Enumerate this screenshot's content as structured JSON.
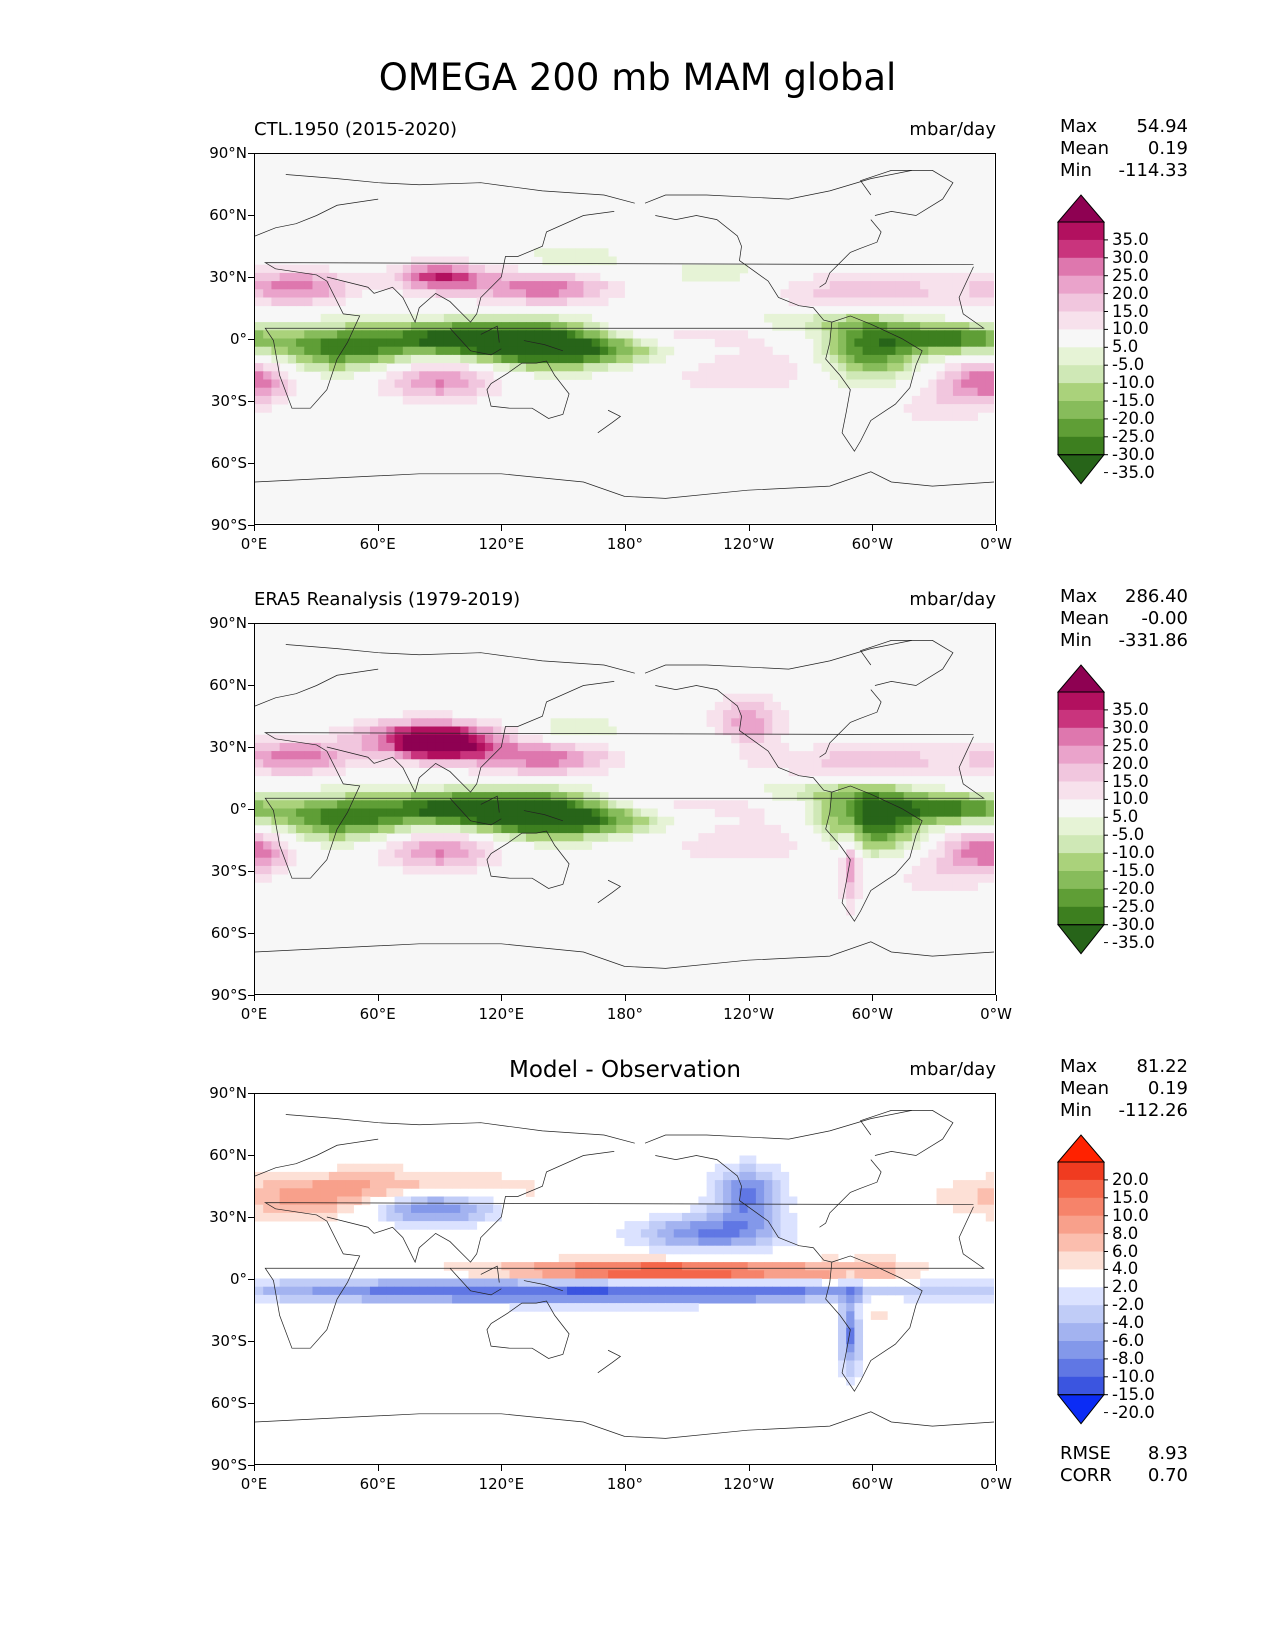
{
  "figure": {
    "title": "OMEGA 200 mb MAM global"
  },
  "axes": {
    "lat_labels": [
      "90°N",
      "60°N",
      "30°N",
      "0°",
      "30°S",
      "60°S",
      "90°S"
    ],
    "lon_labels": [
      "0°E",
      "60°E",
      "120°E",
      "180°",
      "120°W",
      "60°W",
      "0°W"
    ]
  },
  "panels": [
    {
      "name": "model",
      "subtitle": "CTL.1950 (2015-2020)",
      "units": "mbar/day",
      "stats": {
        "max_label": "Max",
        "max": "54.94",
        "mean_label": "Mean",
        "mean": "0.19",
        "min_label": "Min",
        "min": "-114.33"
      },
      "colorbar": {
        "labels": [
          "35.0",
          "30.0",
          "25.0",
          "20.0",
          "15.0",
          "10.0",
          "5.0",
          "-5.0",
          "-10.0",
          "-15.0",
          "-20.0",
          "-25.0",
          "-30.0",
          "-35.0"
        ],
        "colors": [
          "#8e0152",
          "#b2105f",
          "#c9347d",
          "#de77ae",
          "#eaa3cb",
          "#f1c6de",
          "#f7e1ec",
          "#f7f7f7",
          "#e6f3d6",
          "#cfe8b6",
          "#aad27b",
          "#87bc5b",
          "#5f9e36",
          "#3d7f1f",
          "#276419"
        ]
      }
    },
    {
      "name": "observation",
      "subtitle": "ERA5 Reanalysis (1979-2019)",
      "units": "mbar/day",
      "stats": {
        "max_label": "Max",
        "max": "286.40",
        "mean_label": "Mean",
        "mean": "-0.00",
        "min_label": "Min",
        "min": "-331.86"
      },
      "colorbar": {
        "labels": [
          "35.0",
          "30.0",
          "25.0",
          "20.0",
          "15.0",
          "10.0",
          "5.0",
          "-5.0",
          "-10.0",
          "-15.0",
          "-20.0",
          "-25.0",
          "-30.0",
          "-35.0"
        ],
        "colors": [
          "#8e0152",
          "#b2105f",
          "#c9347d",
          "#de77ae",
          "#eaa3cb",
          "#f1c6de",
          "#f7e1ec",
          "#f7f7f7",
          "#e6f3d6",
          "#cfe8b6",
          "#aad27b",
          "#87bc5b",
          "#5f9e36",
          "#3d7f1f",
          "#276419"
        ]
      }
    },
    {
      "name": "difference",
      "subtitle": "Model - Observation",
      "units": "mbar/day",
      "stats": {
        "max_label": "Max",
        "max": "81.22",
        "mean_label": "Mean",
        "mean": "0.19",
        "min_label": "Min",
        "min": "-112.26"
      },
      "colorbar": {
        "labels": [
          "20.0",
          "15.0",
          "10.0",
          "8.0",
          "6.0",
          "4.0",
          "2.0",
          "-2.0",
          "-4.0",
          "-6.0",
          "-8.0",
          "-10.0",
          "-15.0",
          "-20.0"
        ],
        "colors": [
          "#ff2200",
          "#f03b20",
          "#f4664a",
          "#f6836a",
          "#f8a08b",
          "#fbbeae",
          "#fde0d6",
          "#ffffff",
          "#dbe2ff",
          "#c0ccf7",
          "#a3b3f0",
          "#8398ea",
          "#6077e4",
          "#3b55e0",
          "#0b2cf5"
        ]
      },
      "rmse_label": "RMSE",
      "rmse": "8.93",
      "corr_label": "CORR",
      "corr": "0.70"
    }
  ],
  "chart_data": {
    "type": "heatmap",
    "title": "OMEGA 200 mb MAM global",
    "variable": "OMEGA",
    "level": "200 mb",
    "season": "MAM",
    "units": "mbar/day",
    "x_range": [
      0,
      360
    ],
    "y_range": [
      -90,
      90
    ],
    "fields": [
      {
        "name": "CTL.1950 (2015-2020)",
        "max": 54.94,
        "mean": 0.19,
        "min": -114.33,
        "levels": [
          -35,
          -30,
          -25,
          -20,
          -15,
          -10,
          -5,
          5,
          10,
          15,
          20,
          25,
          30,
          35
        ]
      },
      {
        "name": "ERA5 Reanalysis (1979-2019)",
        "max": 286.4,
        "mean": -0.0,
        "min": -331.86,
        "levels": [
          -35,
          -30,
          -25,
          -20,
          -15,
          -10,
          -5,
          5,
          10,
          15,
          20,
          25,
          30,
          35
        ]
      },
      {
        "name": "Model - Observation",
        "max": 81.22,
        "mean": 0.19,
        "min": -112.26,
        "levels": [
          -20,
          -15,
          -10,
          -8,
          -6,
          -4,
          -2,
          2,
          4,
          6,
          8,
          10,
          15,
          20
        ],
        "rmse": 8.93,
        "corr": 0.7
      }
    ]
  }
}
